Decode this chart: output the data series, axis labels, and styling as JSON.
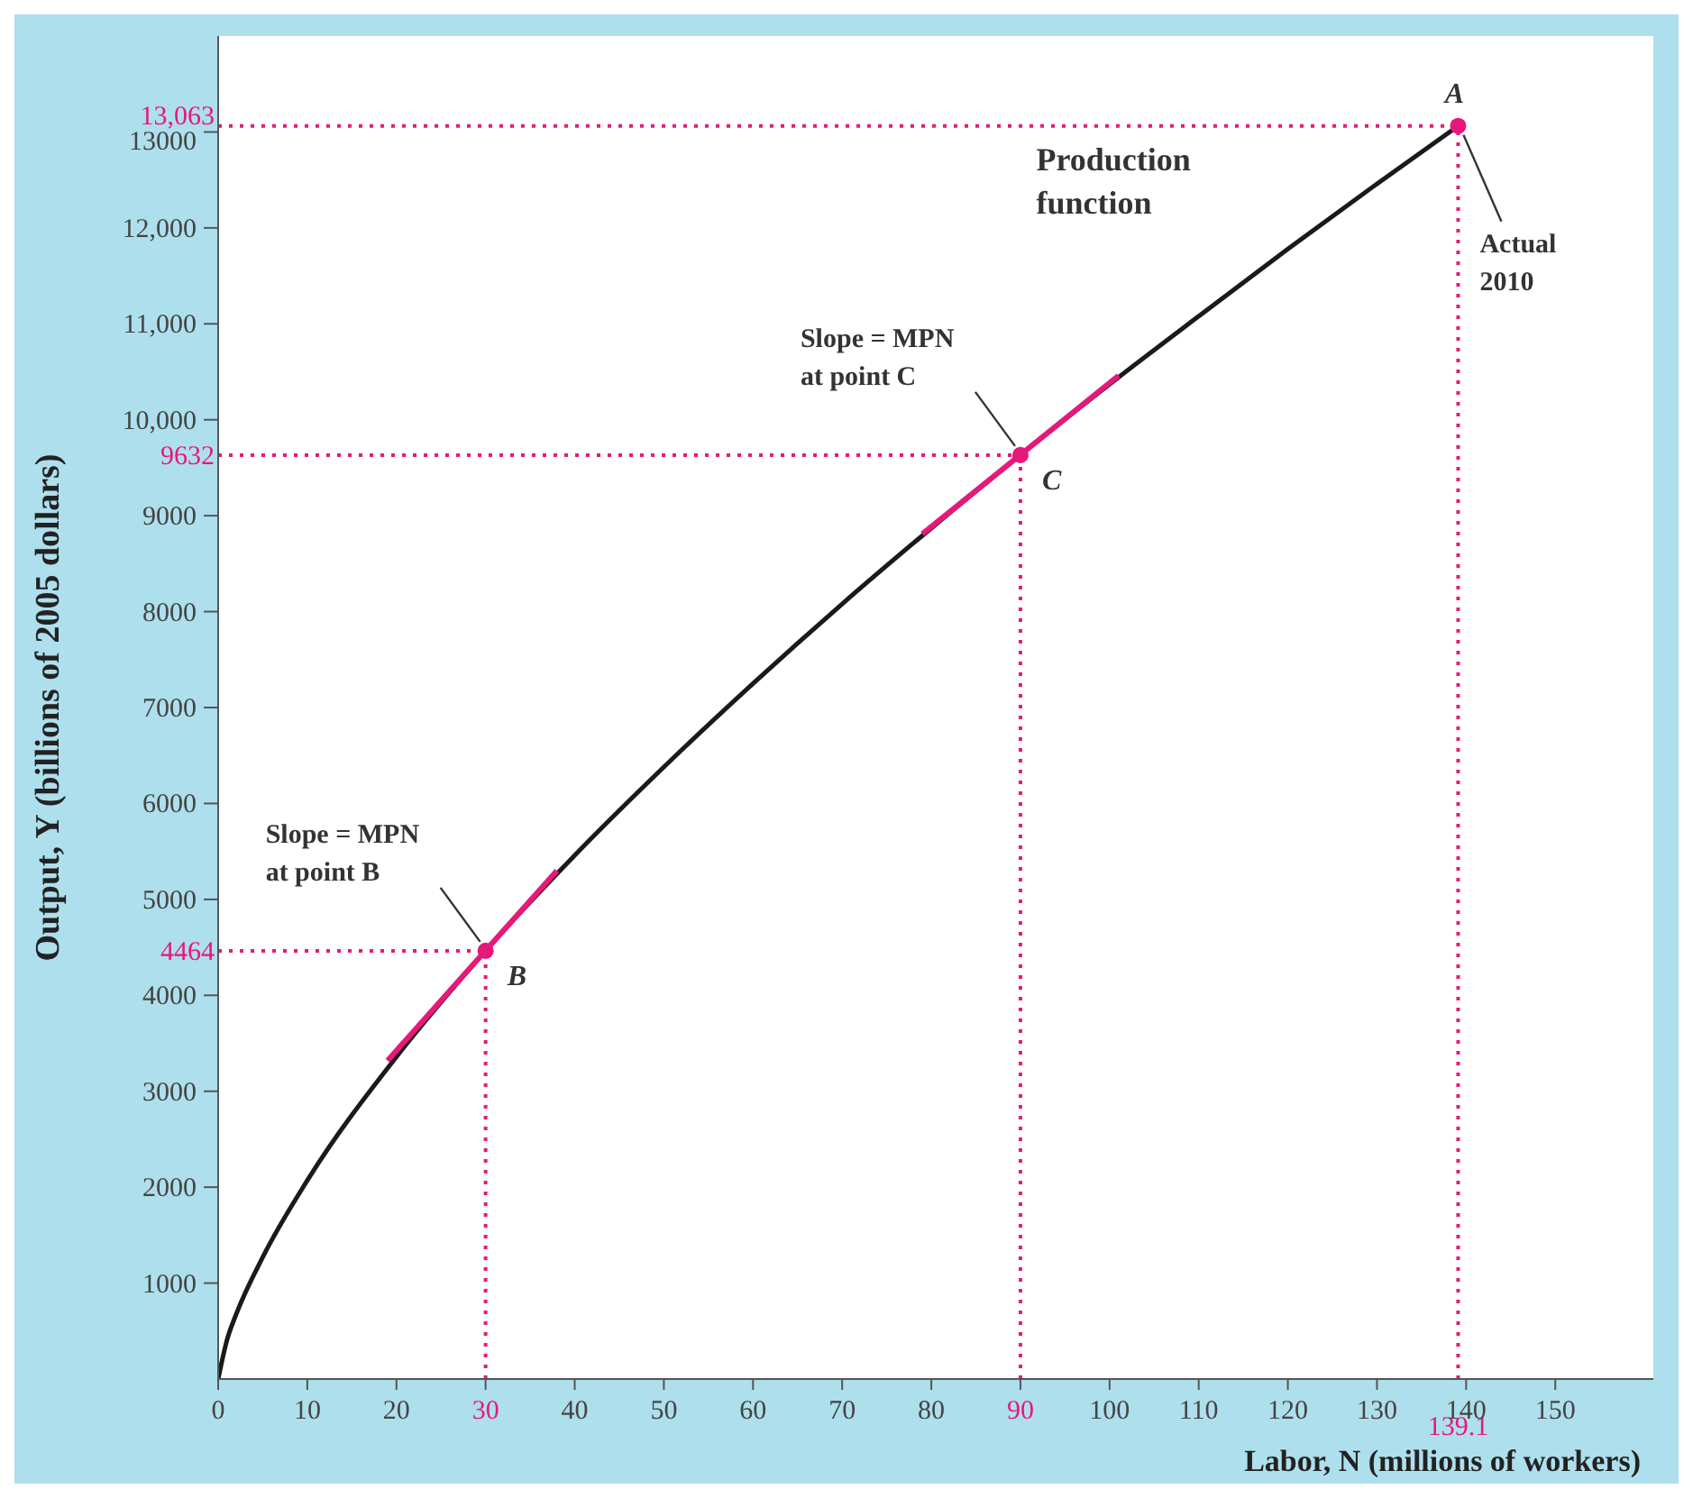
{
  "chart_data": {
    "type": "line",
    "xlabel": "Labor, N (millions of workers)",
    "ylabel": "Output, Y (billions of 2005 dollars)",
    "xlim": [
      0,
      161
    ],
    "ylim": [
      0,
      14000
    ],
    "xticks": [
      0,
      10,
      20,
      30,
      40,
      50,
      60,
      70,
      80,
      90,
      100,
      110,
      120,
      130,
      140,
      150
    ],
    "yticks": [
      1000,
      2000,
      3000,
      4000,
      5000,
      6000,
      7000,
      8000,
      9000,
      {
        "value": 10000,
        "label": "10,000"
      },
      {
        "value": 11000,
        "label": "11,000"
      },
      {
        "value": 12000,
        "label": "12,000"
      },
      13000
    ],
    "grid": false,
    "series": [
      {
        "color": "#1a1a1a",
        "marker": "none",
        "x": [
          0,
          1,
          2,
          5,
          10,
          20,
          30,
          40,
          50,
          60,
          70,
          80,
          90,
          100,
          110,
          120,
          130,
          139.1
        ],
        "values": [
          0,
          410,
          670,
          1270,
          2070,
          3360,
          4464,
          5460,
          6380,
          7250,
          8080,
          8870,
          9632,
          10370,
          11080,
          11780,
          12460,
          13063
        ]
      },
      {
        "color": "#e6197b",
        "marker": "none",
        "x": [
          19,
          38
        ],
        "values": [
          3320,
          5300
        ]
      },
      {
        "color": "#e6197b",
        "marker": "none",
        "x": [
          79,
          101
        ],
        "values": [
          8810,
          10460
        ]
      },
      {
        "type": "scatter",
        "color": "#e6197b",
        "marker": "circle",
        "x": [
          30,
          90,
          139.1
        ],
        "values": [
          4464,
          9632,
          13063
        ]
      }
    ],
    "ref_lines": [
      {
        "axis": "x",
        "value": 30,
        "color": "#e6197b",
        "line_style": "dotted"
      },
      {
        "axis": "x",
        "value": 90,
        "color": "#e6197b",
        "line_style": "dotted"
      },
      {
        "axis": "x",
        "value": 139.1,
        "label": "139.1",
        "color": "#e6197b",
        "line_style": "dotted"
      },
      {
        "axis": "y",
        "value": 4464,
        "label": "4464",
        "color": "#e6197b",
        "line_style": "dotted"
      },
      {
        "axis": "y",
        "value": 9632,
        "label": "9632",
        "color": "#e6197b",
        "line_style": "dotted"
      },
      {
        "axis": "y",
        "value": 13063,
        "label": "13,063",
        "color": "#e6197b",
        "line_style": "dotted"
      }
    ],
    "annotations": [
      "Production function",
      {
        "text": "A",
        "x": 139.1,
        "y": 13063
      },
      {
        "text": "B",
        "x": 30,
        "y": 4464
      },
      {
        "text": "C",
        "x": 90,
        "y": 9632
      },
      {
        "text": "Actual 2010",
        "x": 139.1,
        "y": 13063
      },
      {
        "text": "Slope = MPN at point B",
        "x": 30,
        "y": 4464
      },
      {
        "text": "Slope = MPN at point C",
        "x": 90,
        "y": 9632
      }
    ]
  }
}
